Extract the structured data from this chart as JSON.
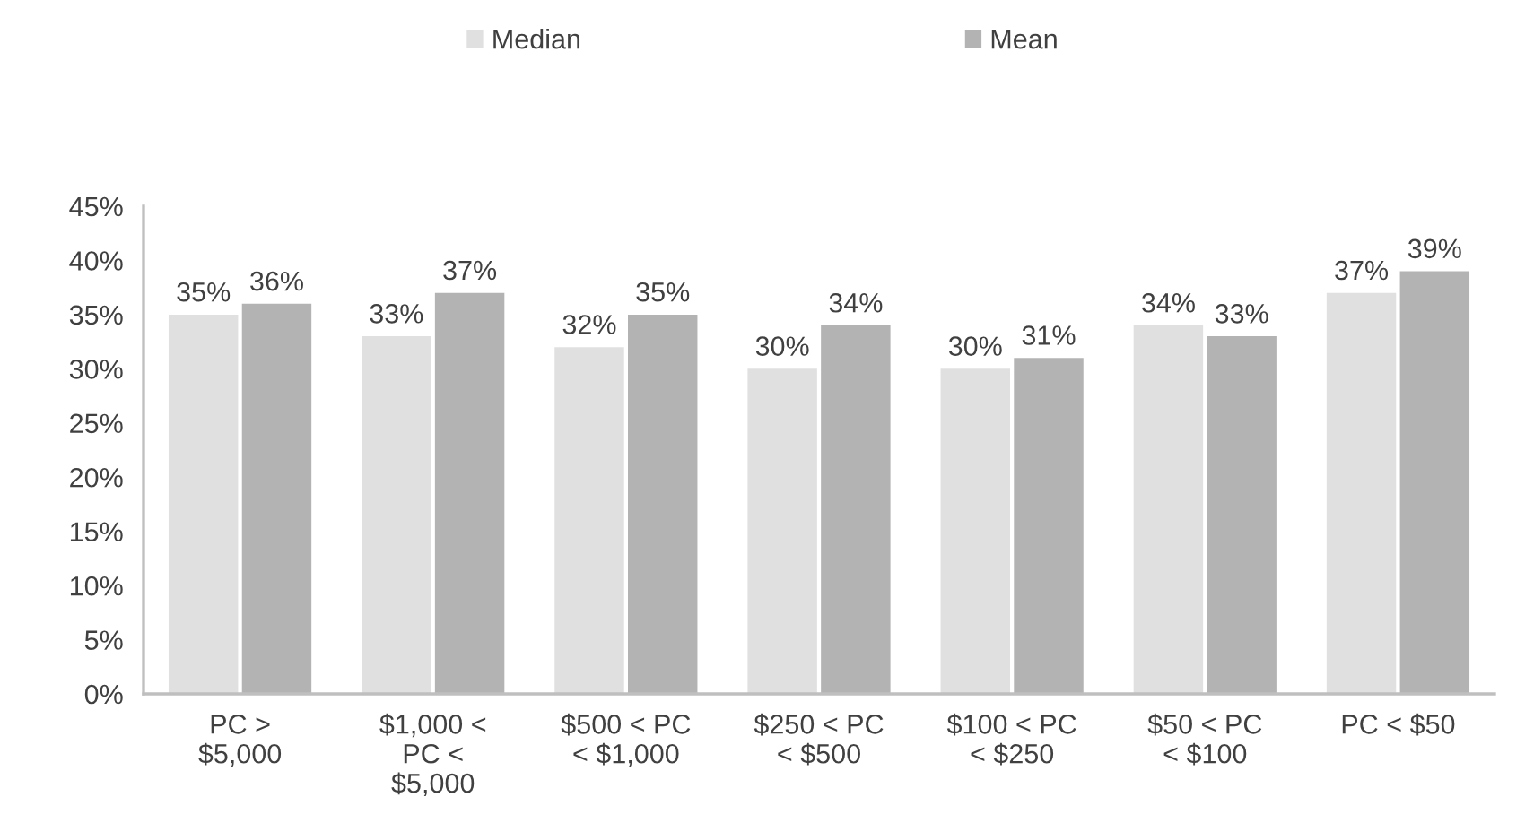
{
  "chart_data": {
    "type": "bar",
    "categories": [
      "PC >\n$5,000",
      "$1,000 <\nPC <\n$5,000",
      "$500 < PC\n< $1,000",
      "$250 < PC\n< $500",
      "$100 < PC\n< $250",
      "$50 < PC\n< $100",
      "PC < $50"
    ],
    "series": [
      {
        "name": "Median",
        "color": "#e0e0e0",
        "values": [
          35,
          33,
          32,
          30,
          30,
          34,
          37
        ],
        "value_labels": [
          "35%",
          "33%",
          "32%",
          "30%",
          "30%",
          "34%",
          "37%"
        ]
      },
      {
        "name": "Mean",
        "color": "#b3b3b3",
        "values": [
          36,
          37,
          35,
          34,
          31,
          33,
          39
        ],
        "value_labels": [
          "36%",
          "37%",
          "35%",
          "34%",
          "31%",
          "33%",
          "39%"
        ]
      }
    ],
    "ylim": [
      0,
      45
    ],
    "yticks": [
      {
        "value": 0,
        "label": "0%"
      },
      {
        "value": 5,
        "label": "5%"
      },
      {
        "value": 10,
        "label": "10%"
      },
      {
        "value": 15,
        "label": "15%"
      },
      {
        "value": 20,
        "label": "20%"
      },
      {
        "value": 25,
        "label": "25%"
      },
      {
        "value": 30,
        "label": "30%"
      },
      {
        "value": 35,
        "label": "35%"
      },
      {
        "value": 40,
        "label": "40%"
      },
      {
        "value": 45,
        "label": "45%"
      }
    ],
    "legend": "top",
    "grid": false
  }
}
